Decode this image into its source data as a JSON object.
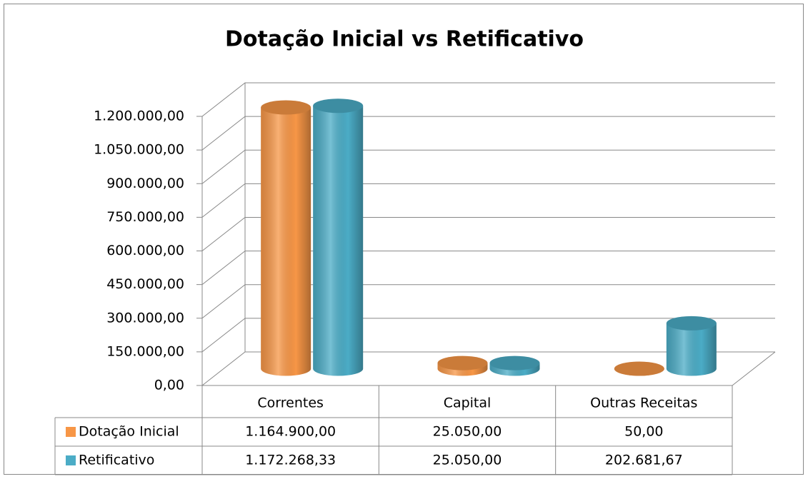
{
  "chart_data": {
    "type": "bar",
    "title": "Dotação Inicial vs Retificativo",
    "categories": [
      "Correntes",
      "Capital",
      "Outras Receitas"
    ],
    "series": [
      {
        "name": "Dotação Inicial",
        "color": "#f79646",
        "values": [
          1164900,
          25050,
          50
        ],
        "value_labels": [
          "1.164.900,00",
          "25.050,00",
          "50,00"
        ]
      },
      {
        "name": "Retificativo",
        "color": "#4bacc6",
        "values": [
          1172268.33,
          25050,
          202681.67
        ],
        "value_labels": [
          "1.172.268,33",
          "25.050,00",
          "202.681,67"
        ]
      }
    ],
    "ylim": [
      0,
      1200000
    ],
    "yticks": [
      {
        "value": 0,
        "label": "0,00"
      },
      {
        "value": 150000,
        "label": "150.000,00"
      },
      {
        "value": 300000,
        "label": "300.000,00"
      },
      {
        "value": 450000,
        "label": "450.000,00"
      },
      {
        "value": 600000,
        "label": "600.000,00"
      },
      {
        "value": 750000,
        "label": "750.000,00"
      },
      {
        "value": 900000,
        "label": "900.000,00"
      },
      {
        "value": 1050000,
        "label": "1.050.000,00"
      },
      {
        "value": 1200000,
        "label": "1.200.000,00"
      }
    ],
    "grid": true
  }
}
